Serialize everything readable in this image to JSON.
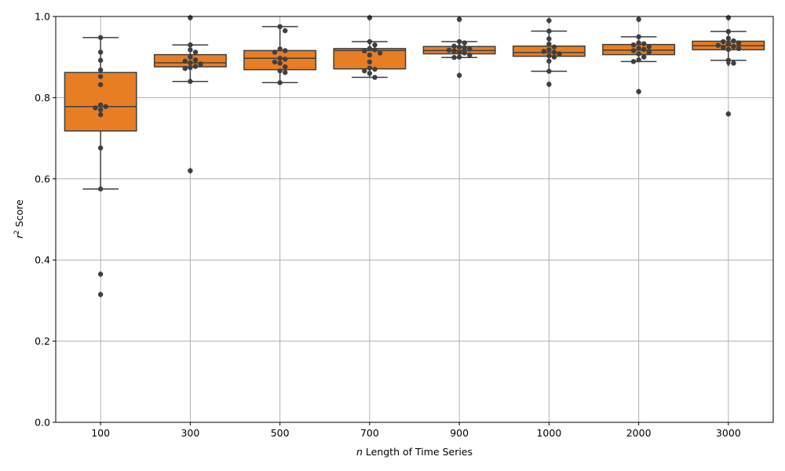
{
  "chart_data": {
    "type": "box",
    "xlabel_italic": "n",
    "xlabel_rest": " Length of Time Series",
    "ylabel_italic": "r",
    "ylabel_sup": "2",
    "ylabel_rest": " Score",
    "categories": [
      "100",
      "300",
      "500",
      "700",
      "900",
      "1000",
      "2000",
      "3000"
    ],
    "ylim": [
      0.0,
      1.0
    ],
    "yticks": [
      "0.0",
      "0.2",
      "0.4",
      "0.6",
      "0.8",
      "1.0"
    ],
    "ytick_values": [
      0.0,
      0.2,
      0.4,
      0.6,
      0.8,
      1.0
    ],
    "grid": true,
    "colors": {
      "box_fill": "#E87E24",
      "box_edge": "#3F3F3F",
      "point": "#3F3F3F",
      "grid": "#B0B0B0"
    },
    "boxes": [
      {
        "category": "100",
        "whisker_low": 0.575,
        "q1": 0.718,
        "median": 0.778,
        "q3": 0.862,
        "whisker_high": 0.948,
        "outliers": [
          0.365,
          0.315
        ]
      },
      {
        "category": "300",
        "whisker_low": 0.84,
        "q1": 0.876,
        "median": 0.886,
        "q3": 0.906,
        "whisker_high": 0.93,
        "outliers": [
          0.997,
          0.62
        ]
      },
      {
        "category": "500",
        "whisker_low": 0.837,
        "q1": 0.869,
        "median": 0.897,
        "q3": 0.916,
        "whisker_high": 0.975,
        "outliers": []
      },
      {
        "category": "700",
        "whisker_low": 0.85,
        "q1": 0.871,
        "median": 0.916,
        "q3": 0.921,
        "whisker_high": 0.938,
        "outliers": [
          0.997
        ]
      },
      {
        "category": "900",
        "whisker_low": 0.899,
        "q1": 0.908,
        "median": 0.916,
        "q3": 0.926,
        "whisker_high": 0.938,
        "outliers": [
          0.993,
          0.855
        ]
      },
      {
        "category": "1000",
        "whisker_low": 0.865,
        "q1": 0.902,
        "median": 0.911,
        "q3": 0.927,
        "whisker_high": 0.964,
        "outliers": [
          0.99,
          0.833
        ]
      },
      {
        "category": "2000",
        "whisker_low": 0.889,
        "q1": 0.906,
        "median": 0.917,
        "q3": 0.931,
        "whisker_high": 0.95,
        "outliers": [
          0.993,
          0.815
        ]
      },
      {
        "category": "3000",
        "whisker_low": 0.892,
        "q1": 0.918,
        "median": 0.928,
        "q3": 0.939,
        "whisker_high": 0.963,
        "outliers": [
          0.997,
          0.885,
          0.76
        ]
      }
    ],
    "points": [
      [
        0.948,
        0.912,
        0.892,
        0.868,
        0.852,
        0.832,
        0.782,
        0.778,
        0.775,
        0.77,
        0.758,
        0.676,
        0.575,
        0.365,
        0.315
      ],
      [
        0.997,
        0.93,
        0.918,
        0.912,
        0.9,
        0.893,
        0.89,
        0.886,
        0.883,
        0.877,
        0.874,
        0.872,
        0.84,
        0.62
      ],
      [
        0.975,
        0.965,
        0.92,
        0.916,
        0.912,
        0.897,
        0.895,
        0.888,
        0.885,
        0.876,
        0.866,
        0.862,
        0.837
      ],
      [
        0.997,
        0.938,
        0.93,
        0.921,
        0.918,
        0.915,
        0.91,
        0.905,
        0.888,
        0.873,
        0.87,
        0.866,
        0.86,
        0.85
      ],
      [
        0.993,
        0.938,
        0.935,
        0.927,
        0.925,
        0.923,
        0.92,
        0.917,
        0.915,
        0.912,
        0.91,
        0.905,
        0.9,
        0.899,
        0.855
      ],
      [
        0.99,
        0.964,
        0.945,
        0.932,
        0.925,
        0.918,
        0.914,
        0.912,
        0.908,
        0.903,
        0.9,
        0.89,
        0.865,
        0.833
      ],
      [
        0.993,
        0.95,
        0.935,
        0.933,
        0.93,
        0.925,
        0.922,
        0.919,
        0.916,
        0.912,
        0.908,
        0.9,
        0.893,
        0.889,
        0.815
      ],
      [
        0.997,
        0.963,
        0.946,
        0.94,
        0.938,
        0.935,
        0.932,
        0.929,
        0.926,
        0.924,
        0.921,
        0.919,
        0.892,
        0.885,
        0.76
      ]
    ]
  }
}
